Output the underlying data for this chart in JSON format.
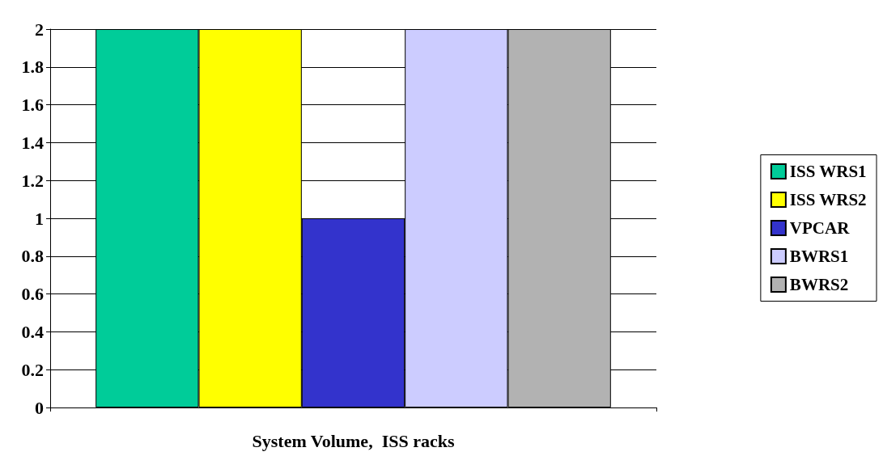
{
  "chart_data": {
    "type": "bar",
    "xlabel": "System Volume,  ISS racks",
    "categories": [
      null
    ],
    "series": [
      {
        "name": "ISS WRS1",
        "color": "#00cc99",
        "values": [
          2
        ]
      },
      {
        "name": "ISS WRS2",
        "color": "#ffff00",
        "values": [
          2
        ]
      },
      {
        "name": "VPCAR",
        "color": "#3333cc",
        "values": [
          1
        ]
      },
      {
        "name": "BWRS1",
        "color": "#ccccff",
        "values": [
          2
        ]
      },
      {
        "name": "BWRS2",
        "color": "#b2b2b2",
        "values": [
          2
        ]
      }
    ],
    "ylim": [
      0,
      2
    ],
    "yticks": [
      0,
      0.2,
      0.4,
      0.6,
      0.8,
      1,
      1.2,
      1.4,
      1.6,
      1.8,
      2
    ],
    "grid": "y",
    "legend": "right"
  }
}
